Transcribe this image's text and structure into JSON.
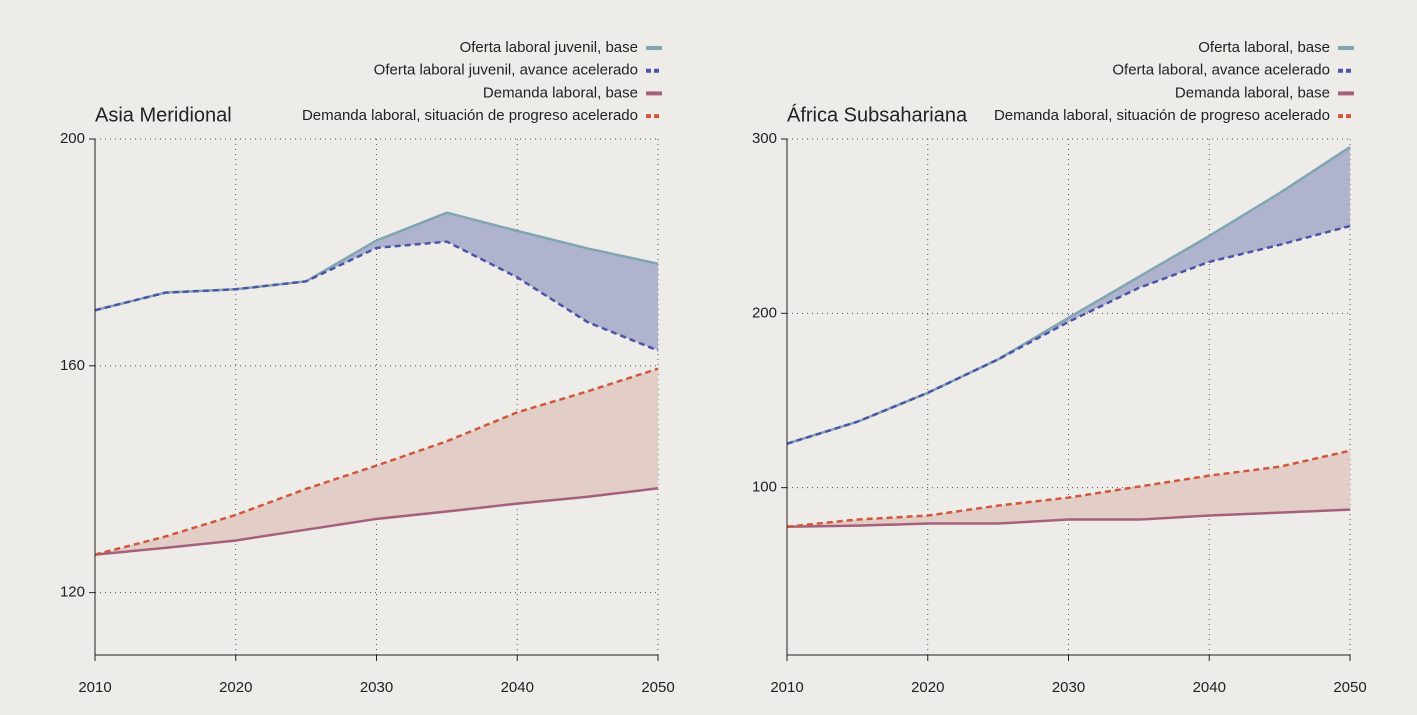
{
  "chart_data": [
    {
      "type": "line",
      "title": "Asia Meridional",
      "x": [
        2010,
        2015,
        2020,
        2025,
        2030,
        2035,
        2040,
        2045,
        2050
      ],
      "xlim": [
        2010,
        2050
      ],
      "xticks": [
        2010,
        2020,
        2030,
        2040,
        2050
      ],
      "ylim": [
        109,
        200
      ],
      "yticks": [
        120,
        160,
        200
      ],
      "grid": true,
      "series": [
        {
          "name": "Oferta laboral juvenil, base",
          "color": "#7fa6b2",
          "dash": false,
          "values": [
            169.8,
            172.9,
            173.5,
            174.9,
            182.1,
            187,
            183.8,
            180.7,
            178
          ]
        },
        {
          "name": "Oferta laboral juvenil, avance acelerado",
          "color": "#4c54a8",
          "dash": true,
          "fill_color": "#afb3cd",
          "values": [
            169.8,
            172.9,
            173.5,
            174.9,
            180.8,
            181.9,
            175.6,
            167.7,
            162.7
          ]
        },
        {
          "name": "Demanda laboral, base",
          "color": "#a5617b",
          "dash": false,
          "values": [
            126.7,
            127.9,
            129.2,
            131.1,
            133,
            134.3,
            135.7,
            136.9,
            138.4
          ]
        },
        {
          "name": "Demanda laboral, situación de progreso acelerado",
          "color": "#d0573a",
          "dash": true,
          "fill_color": "#e3cec7",
          "values": [
            126.7,
            129.9,
            133.7,
            138.3,
            142.4,
            146.7,
            151.8,
            155.5,
            159.5
          ]
        }
      ]
    },
    {
      "type": "line",
      "title": "África Subsahariana",
      "x": [
        2010,
        2015,
        2020,
        2025,
        2030,
        2035,
        2040,
        2045,
        2050
      ],
      "xlim": [
        2010,
        2050
      ],
      "xticks": [
        2010,
        2020,
        2030,
        2040,
        2050
      ],
      "ylim": [
        4,
        300
      ],
      "yticks": [
        100,
        200,
        300
      ],
      "grid": true,
      "series": [
        {
          "name": "Oferta laboral, base",
          "color": "#7fa6b2",
          "dash": false,
          "values": [
            125.2,
            137.8,
            154.4,
            173.6,
            197.4,
            220.9,
            244.4,
            269,
            295.4
          ]
        },
        {
          "name": "Oferta laboral, avance acelerado",
          "color": "#4c54a8",
          "dash": true,
          "fill_color": "#afb3cd",
          "values": [
            125.2,
            137.8,
            154.4,
            173.6,
            195.1,
            214.6,
            229.5,
            239.3,
            250.1
          ]
        },
        {
          "name": "Demanda laboral, base",
          "color": "#a5617b",
          "dash": false,
          "values": [
            77.6,
            78.2,
            79.4,
            79.4,
            81.7,
            81.7,
            84,
            85.7,
            87.4
          ]
        },
        {
          "name": "Demanda laboral, situación de progreso acelerado",
          "color": "#d0573a",
          "dash": true,
          "fill_color": "#e3cec7",
          "values": [
            77.6,
            81.7,
            84,
            89.7,
            94.3,
            100.6,
            106.9,
            112,
            121.2
          ]
        }
      ]
    }
  ]
}
